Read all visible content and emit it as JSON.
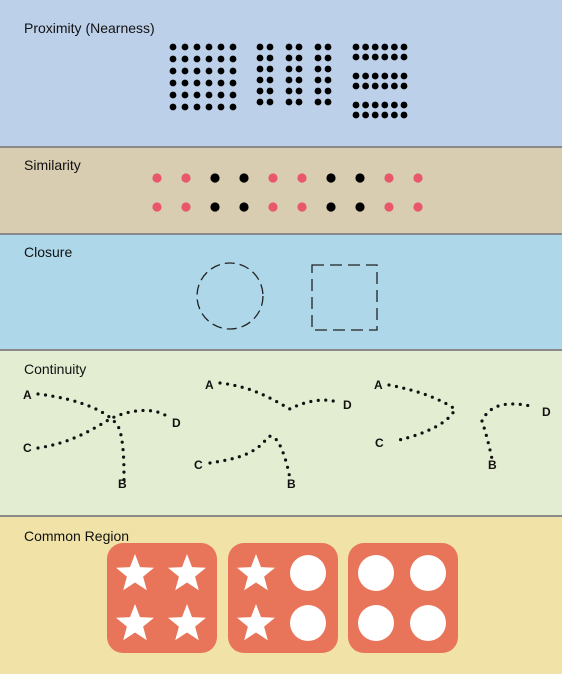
{
  "colors": {
    "proximity_bg": "#bdd0ea",
    "similarity_bg": "#d8ccb1",
    "closure_bg": "#aed8ea",
    "continuity_bg": "#e2edd2",
    "region_bg": "#f1e2a8",
    "dot_dark": "#000000",
    "dot_pink": "#e8576c",
    "region_fill": "#e8745a",
    "divider": "#8a8a8a"
  },
  "panels": {
    "proximity": {
      "title": "Proximity (Nearness)"
    },
    "similarity": {
      "title": "Similarity"
    },
    "closure": {
      "title": "Closure"
    },
    "continuity": {
      "title": "Continuity",
      "figures": [
        {
          "labels": [
            "A",
            "B",
            "C",
            "D"
          ]
        },
        {
          "labels": [
            "A",
            "B",
            "C",
            "D"
          ]
        },
        {
          "labels": [
            "A",
            "B",
            "C",
            "D"
          ]
        }
      ]
    },
    "common_region": {
      "title": "Common Region",
      "groups": [
        {
          "icons": [
            "star-icon",
            "star-icon",
            "star-icon",
            "star-icon"
          ]
        },
        {
          "icons": [
            "star-icon",
            "circle-icon",
            "star-icon",
            "circle-icon"
          ]
        },
        {
          "icons": [
            "circle-icon",
            "circle-icon",
            "circle-icon",
            "circle-icon"
          ]
        }
      ]
    }
  }
}
